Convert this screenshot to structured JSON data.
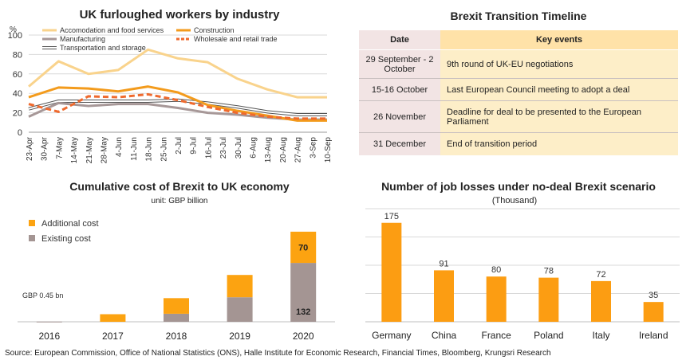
{
  "furlough": {
    "title": "UK furloughed workers by industry",
    "ylabel": "%",
    "legend": [
      "Accomodation and food services",
      "Construction",
      "Manufacturing",
      "Wholesale and retail trade",
      "Transportation and storage"
    ]
  },
  "timeline": {
    "title": "Brexit Transition Timeline",
    "headers": [
      "Date",
      "Key events"
    ],
    "rows": [
      {
        "date": "29 September - 2 October",
        "event": "9th round of UK-EU negotiations"
      },
      {
        "date": "15-16 October",
        "event": "Last European Council meeting to adopt a deal"
      },
      {
        "date": "26 November",
        "event": "Deadline for deal to be presented to the European Parliament"
      },
      {
        "date": "31 December",
        "event": "End of transition period"
      }
    ]
  },
  "cost": {
    "title": "Cumulative cost of Brexit to UK economy",
    "unit": "unit: GBP billion",
    "note": "GBP 0.45 bn"
  },
  "jobs": {
    "title": "Number of job losses under no-deal Brexit scenario",
    "subtitle": "(Thousand)"
  },
  "source": "Source: European Commission, Office of National Statistics (ONS), Halle Institute for Economic Research, Financial Times, Bloomberg, Krungsri Research",
  "colors": {
    "accom": "#f9d38c",
    "construction": "#f39b1c",
    "manufacturing": "#a79898",
    "wholesale": "#ef6a2e",
    "transport": "#555555",
    "additional": "#fca311",
    "existing": "#a49593",
    "jobs": "#fc9d12"
  },
  "chart_data": [
    {
      "type": "line",
      "title": "UK furloughed workers by industry",
      "ylabel": "%",
      "ylim": [
        0,
        100
      ],
      "yticks": [
        0,
        20,
        40,
        60,
        80,
        100
      ],
      "x": [
        "23-Apr",
        "30-Apr",
        "7-May",
        "14-May",
        "21-May",
        "28-May",
        "4-Jun",
        "11-Jun",
        "18-Jun",
        "25-Jun",
        "2-Jul",
        "9-Jul",
        "16-Jul",
        "23-Jul",
        "30-Jul",
        "6-Aug",
        "13-Aug",
        "20-Aug",
        "27-Aug",
        "3-Sep",
        "10-Sep"
      ],
      "series": [
        {
          "name": "Accomodation and food services",
          "values": [
            47,
            null,
            73,
            null,
            60,
            null,
            64,
            null,
            85,
            null,
            76,
            null,
            72,
            null,
            55,
            null,
            44,
            null,
            36,
            null,
            36
          ]
        },
        {
          "name": "Construction",
          "values": [
            36,
            null,
            46,
            null,
            45,
            null,
            42,
            null,
            47,
            null,
            41,
            null,
            28,
            null,
            22,
            null,
            17,
            null,
            12,
            null,
            12
          ]
        },
        {
          "name": "Manufacturing",
          "values": [
            16,
            null,
            30,
            null,
            27,
            null,
            29,
            null,
            29,
            null,
            25,
            null,
            20,
            null,
            18,
            null,
            15,
            null,
            13,
            null,
            13
          ]
        },
        {
          "name": "Wholesale and retail trade",
          "values": [
            29,
            null,
            21,
            null,
            37,
            null,
            36,
            null,
            39,
            null,
            33,
            null,
            26,
            null,
            20,
            null,
            16,
            null,
            14,
            null,
            14
          ]
        },
        {
          "name": "Transportation and storage",
          "values": [
            24,
            null,
            32,
            null,
            32,
            null,
            32,
            null,
            32,
            null,
            33,
            null,
            30,
            null,
            26,
            null,
            21,
            null,
            18,
            null,
            18
          ]
        }
      ],
      "grid": true,
      "legend": "top"
    },
    {
      "type": "bar",
      "title": "Cumulative cost of Brexit to UK economy",
      "unit": "unit: GBP billion",
      "categories": [
        "2016",
        "2017",
        "2018",
        "2019",
        "2020"
      ],
      "series": [
        {
          "name": "Existing cost",
          "values": [
            0.45,
            0,
            18,
            55,
            132
          ]
        },
        {
          "name": "Additional cost",
          "values": [
            0,
            17,
            35,
            50,
            70
          ]
        }
      ],
      "stacked": true,
      "data_labels": {
        "2020": [
          "132",
          "70"
        ]
      },
      "legend": "top-left"
    },
    {
      "type": "bar",
      "title": "Number of job losses under no-deal Brexit scenario",
      "subtitle": "(Thousand)",
      "categories": [
        "Germany",
        "China",
        "France",
        "Poland",
        "Italy",
        "Ireland"
      ],
      "values": [
        175,
        91,
        80,
        78,
        72,
        35
      ]
    }
  ]
}
